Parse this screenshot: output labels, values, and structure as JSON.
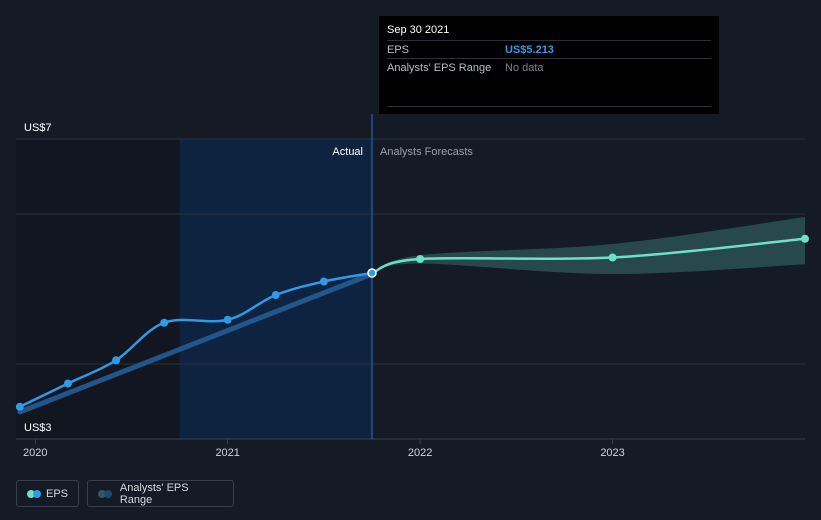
{
  "tooltip": {
    "date": "Sep 30 2021",
    "eps_label": "EPS",
    "eps_value": "US$5.213",
    "range_label": "Analysts' EPS Range",
    "range_value": "No data"
  },
  "section_labels": {
    "actual": "Actual",
    "forecast": "Analysts Forecasts"
  },
  "legend": {
    "eps_label": "EPS",
    "range_label": "Analysts' EPS Range"
  },
  "colors": {
    "background": "#151b26",
    "eps_actual": "#2f9be6",
    "eps_forecast": "#6ee0c8",
    "range_band": "#2e5a5c",
    "actual_highlight": "#0d2445"
  },
  "chart_data": {
    "type": "line",
    "y_axis_labels": [
      "US$7",
      "US$3"
    ],
    "x_tick_labels": [
      "2020",
      "2021",
      "2022",
      "2023"
    ],
    "ylim": [
      3,
      7
    ],
    "x_domain": [
      2019.9,
      2024.0
    ],
    "series": [
      {
        "name": "EPS",
        "kind": "actual",
        "x": [
          2019.92,
          2020.17,
          2020.42,
          2020.67,
          2021.0,
          2021.25,
          2021.5,
          2021.75
        ],
        "values": [
          3.43,
          3.74,
          4.05,
          4.55,
          4.59,
          4.92,
          5.1,
          5.213
        ]
      },
      {
        "kind": "actual-trend",
        "x": [
          2019.92,
          2021.75
        ],
        "values": [
          3.36,
          5.2
        ]
      },
      {
        "name": "EPS",
        "kind": "forecast",
        "x": [
          2021.75,
          2022.0,
          2023.0,
          2024.0
        ],
        "values": [
          5.213,
          5.4,
          5.42,
          5.67
        ]
      },
      {
        "name": "Analysts' EPS Range",
        "kind": "forecast-range",
        "x": [
          2021.75,
          2022.0,
          2023.0,
          2024.0
        ],
        "low": [
          5.213,
          5.34,
          5.2,
          5.33
        ],
        "high": [
          5.213,
          5.45,
          5.6,
          5.96
        ]
      }
    ],
    "highlight_x": [
      2020.75,
      2021.75
    ],
    "legend_position": "bottom-left",
    "grid": true
  }
}
